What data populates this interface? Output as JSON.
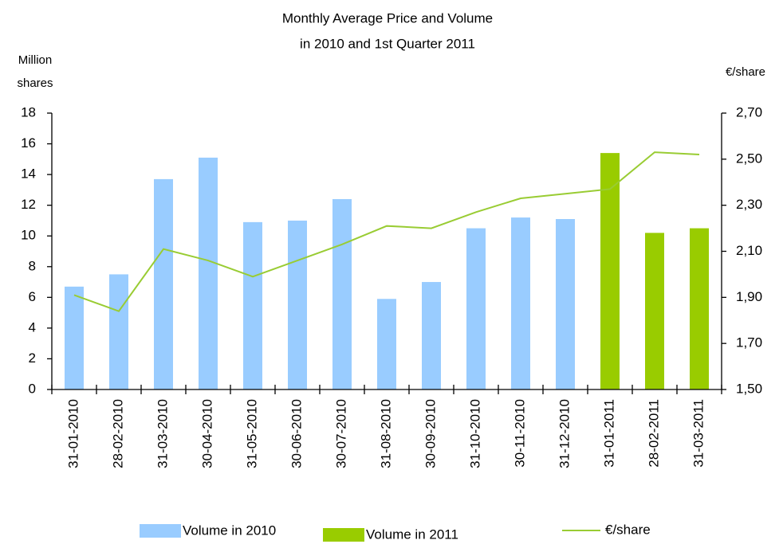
{
  "chart_data": {
    "type": "bar-line",
    "title": [
      "Monthly Average Price and Volume",
      "in 2010 and 1st Quarter 2011"
    ],
    "y_label": [
      "Million",
      "shares"
    ],
    "y2_label": "€/share",
    "categories": [
      "31-01-2010",
      "28-02-2010",
      "31-03-2010",
      "30-04-2010",
      "31-05-2010",
      "30-06-2010",
      "30-07-2010",
      "31-08-2010",
      "30-09-2010",
      "31-10-2010",
      "30-11-2010",
      "31-12-2010",
      "31-01-2011",
      "28-02-2011",
      "31-03-2011"
    ],
    "series": [
      {
        "name": "Volume in 2010",
        "color": "#99ccff",
        "kind": "bar",
        "values": [
          6.7,
          7.5,
          13.7,
          15.1,
          10.9,
          11.0,
          12.4,
          5.9,
          7.0,
          10.5,
          11.2,
          11.1,
          null,
          null,
          null
        ]
      },
      {
        "name": "Volume in 2011",
        "color": "#99cc00",
        "kind": "bar",
        "values": [
          null,
          null,
          null,
          null,
          null,
          null,
          null,
          null,
          null,
          null,
          null,
          null,
          15.4,
          10.2,
          10.5
        ]
      },
      {
        "name": "€/share",
        "color": "#99cc33",
        "kind": "line",
        "axis": "y2",
        "values": [
          1.91,
          1.84,
          2.11,
          2.06,
          1.99,
          2.06,
          2.13,
          2.21,
          2.2,
          2.27,
          2.33,
          2.35,
          2.37,
          2.53,
          2.52
        ]
      }
    ],
    "ylim": [
      0,
      18
    ],
    "yticks": [
      0,
      2,
      4,
      6,
      8,
      10,
      12,
      14,
      16,
      18
    ],
    "y2lim": [
      1.5,
      2.7
    ],
    "y2ticks": [
      {
        "value": 1.5,
        "label": "1,50"
      },
      {
        "value": 1.7,
        "label": "1,70"
      },
      {
        "value": 1.9,
        "label": "1,90"
      },
      {
        "value": 2.1,
        "label": "2,10"
      },
      {
        "value": 2.3,
        "label": "2,30"
      },
      {
        "value": 2.5,
        "label": "2,50"
      },
      {
        "value": 2.7,
        "label": "2,70"
      }
    ],
    "grid": false
  }
}
